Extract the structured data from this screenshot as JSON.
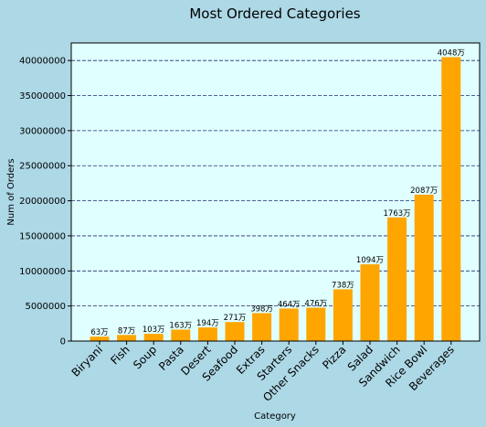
{
  "chart_data": {
    "type": "bar",
    "title": "Most Ordered Categories",
    "xlabel": "Category",
    "ylabel": "Num of Orders",
    "ylim": [
      0,
      42500000
    ],
    "yticks": [
      0,
      5000000,
      10000000,
      15000000,
      20000000,
      25000000,
      30000000,
      35000000,
      40000000
    ],
    "grid": "y-dashed",
    "categories": [
      "Biryani",
      "Fish",
      "Soup",
      "Pasta",
      "Desert",
      "Seafood",
      "Extras",
      "Starters",
      "Other Snacks",
      "Pizza",
      "Salad",
      "Sandwich",
      "Rice Bowl",
      "Beverages"
    ],
    "values": [
      630000,
      870000,
      1030000,
      1630000,
      1940000,
      2710000,
      3980000,
      4640000,
      4760000,
      7380000,
      10940000,
      17630000,
      20870000,
      40480000
    ],
    "data_labels": [
      "63万",
      "87万",
      "103万",
      "163万",
      "194万",
      "271万",
      "398万",
      "464万",
      "476万",
      "738万",
      "1094万",
      "1763万",
      "2087万",
      "4048万"
    ],
    "colors": {
      "background": "#add8e6",
      "plot_background": "#e0ffff",
      "bar": "#ffa500",
      "grid": "#1f2f6e"
    }
  }
}
